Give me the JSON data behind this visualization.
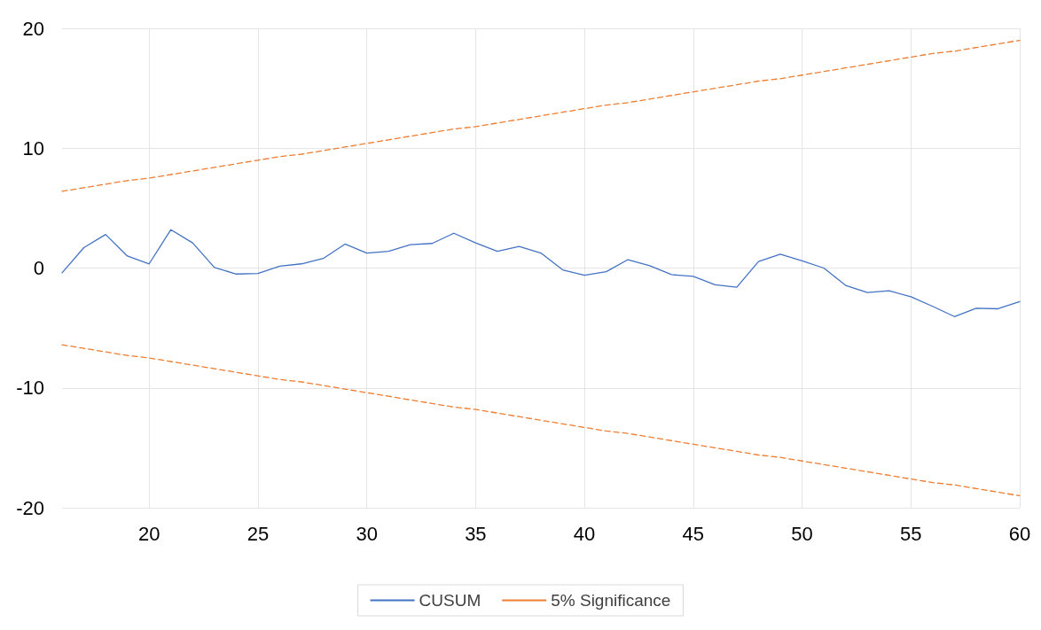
{
  "chart_data": {
    "type": "line",
    "x": [
      16,
      17,
      18,
      19,
      20,
      21,
      22,
      23,
      24,
      25,
      26,
      27,
      28,
      29,
      30,
      31,
      32,
      33,
      34,
      35,
      36,
      37,
      38,
      39,
      40,
      41,
      42,
      43,
      44,
      45,
      46,
      47,
      48,
      49,
      50,
      51,
      52,
      53,
      54,
      55,
      56,
      57,
      58,
      59,
      60
    ],
    "series": [
      {
        "name": "CUSUM",
        "color": "#4472c4",
        "line_style": "solid",
        "values": [
          -0.4,
          1.7,
          2.8,
          1.0,
          0.35,
          3.2,
          2.1,
          0.05,
          -0.5,
          -0.45,
          0.15,
          0.35,
          0.8,
          2.0,
          1.25,
          1.4,
          1.95,
          2.05,
          2.9,
          2.1,
          1.4,
          1.8,
          1.25,
          -0.15,
          -0.6,
          -0.3,
          0.7,
          0.2,
          -0.55,
          -0.7,
          -1.4,
          -1.6,
          0.55,
          1.15,
          0.6,
          0.0,
          -1.45,
          -2.05,
          -1.9,
          -2.4,
          -3.2,
          -4.05,
          -3.35,
          -3.4,
          -2.8
        ]
      },
      {
        "name": "5% Significance",
        "color": "#ed7d31",
        "line_style": "dashed",
        "values": [
          6.4,
          6.7,
          7.0,
          7.3,
          7.5,
          7.8,
          8.1,
          8.4,
          8.7,
          9.0,
          9.3,
          9.5,
          9.8,
          10.1,
          10.4,
          10.7,
          11.0,
          11.3,
          11.6,
          11.8,
          12.1,
          12.4,
          12.7,
          13.0,
          13.3,
          13.6,
          13.8,
          14.1,
          14.4,
          14.7,
          15.0,
          15.3,
          15.6,
          15.8,
          16.1,
          16.4,
          16.7,
          17.0,
          17.3,
          17.6,
          17.9,
          18.1,
          18.4,
          18.7,
          19.0
        ]
      },
      {
        "color": "#ed7d31",
        "line_style": "dashed",
        "values": [
          -6.4,
          -6.7,
          -7.0,
          -7.3,
          -7.5,
          -7.8,
          -8.1,
          -8.4,
          -8.7,
          -9.0,
          -9.3,
          -9.5,
          -9.8,
          -10.1,
          -10.4,
          -10.7,
          -11.0,
          -11.3,
          -11.6,
          -11.8,
          -12.1,
          -12.4,
          -12.7,
          -13.0,
          -13.3,
          -13.6,
          -13.8,
          -14.1,
          -14.4,
          -14.7,
          -15.0,
          -15.3,
          -15.6,
          -15.8,
          -16.1,
          -16.4,
          -16.7,
          -17.0,
          -17.3,
          -17.6,
          -17.9,
          -18.1,
          -18.4,
          -18.7,
          -19.0
        ]
      }
    ],
    "xlim": [
      16,
      60
    ],
    "xticks": [
      20,
      25,
      30,
      35,
      40,
      45,
      50,
      55,
      60
    ],
    "ylim": [
      -20,
      20
    ],
    "yticks": [
      -20,
      -10,
      0,
      10,
      20
    ],
    "grid": true,
    "legend": "bottom",
    "marker": "none"
  }
}
